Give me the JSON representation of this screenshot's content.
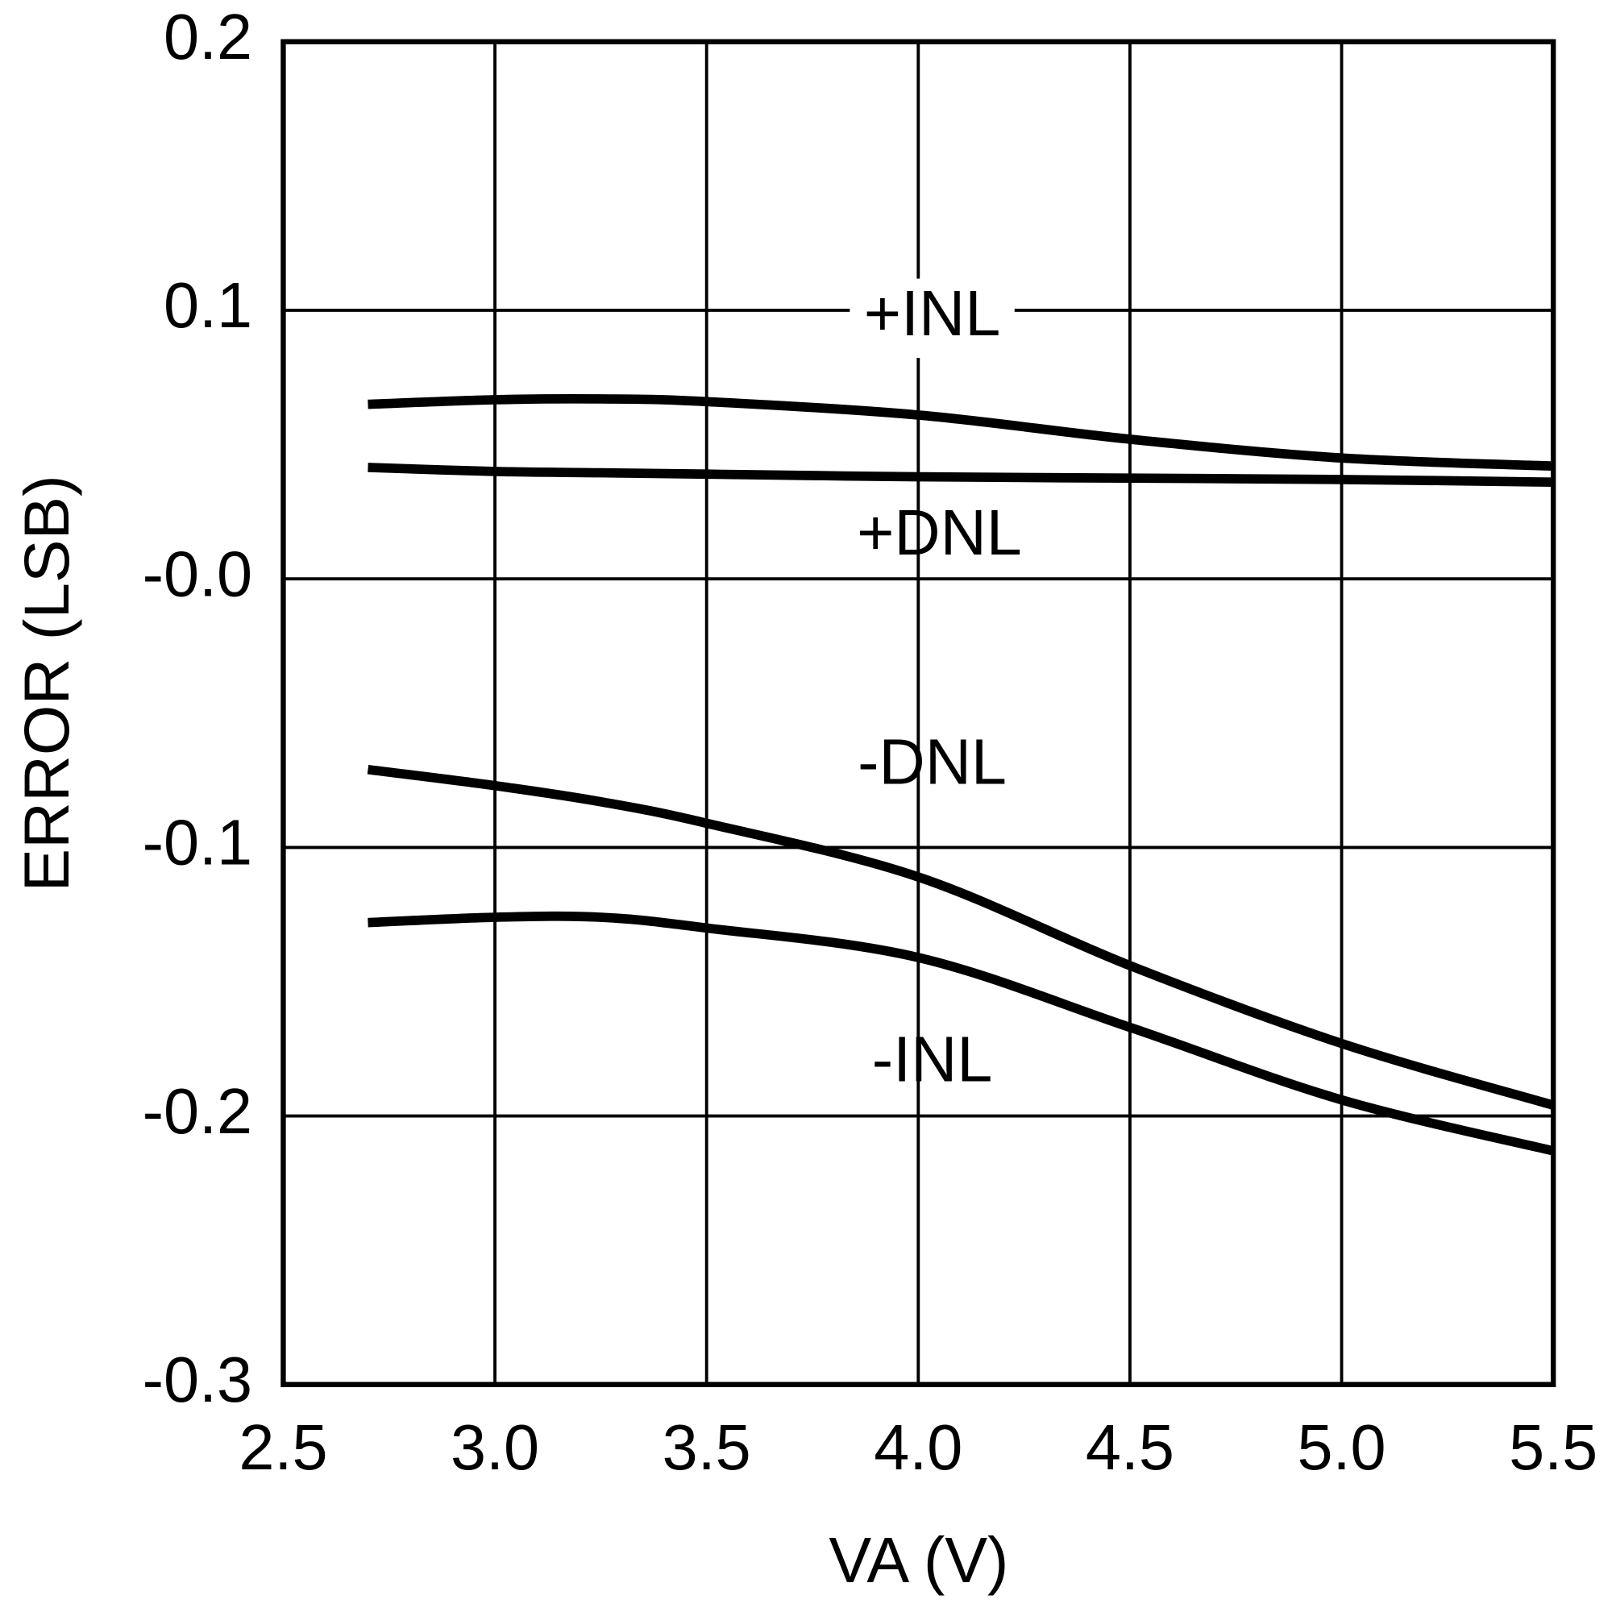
{
  "chart_data": {
    "type": "line",
    "x_label": "VA (V)",
    "y_label": "ERROR (LSB)",
    "x": [
      2.7,
      3.0,
      3.25,
      3.5,
      4.0,
      4.5,
      5.0,
      5.5
    ],
    "series": [
      {
        "name": "+INL",
        "color": "#000000",
        "values": [
          0.065,
          0.0667,
          0.067,
          0.066,
          0.061,
          0.052,
          0.045,
          0.042
        ]
      },
      {
        "name": "+DNL",
        "color": "#000000",
        "values": [
          0.0415,
          0.04,
          0.0395,
          0.039,
          0.038,
          0.0375,
          0.037,
          0.036
        ]
      },
      {
        "name": "-DNL",
        "color": "#000000",
        "values": [
          -0.071,
          -0.077,
          -0.083,
          -0.091,
          -0.111,
          -0.144,
          -0.173,
          -0.196
        ]
      },
      {
        "name": "-INL",
        "color": "#000000",
        "values": [
          -0.128,
          -0.126,
          -0.126,
          -0.13,
          -0.141,
          -0.167,
          -0.194,
          -0.213
        ]
      }
    ],
    "xlim": [
      2.5,
      5.5
    ],
    "xticks": [
      2.5,
      {
        "value": 3.0,
        "label": "3.0"
      },
      3.5,
      {
        "value": 4.0,
        "label": "4.0"
      },
      4.5,
      {
        "value": 5.0,
        "label": "5.0"
      },
      5.5
    ],
    "ylim": [
      -0.3,
      0.2
    ],
    "yticks": [
      -0.3,
      -0.2,
      -0.1,
      {
        "value": 0,
        "label": "-0.0"
      },
      0.1,
      0.2
    ],
    "grid": true
  }
}
